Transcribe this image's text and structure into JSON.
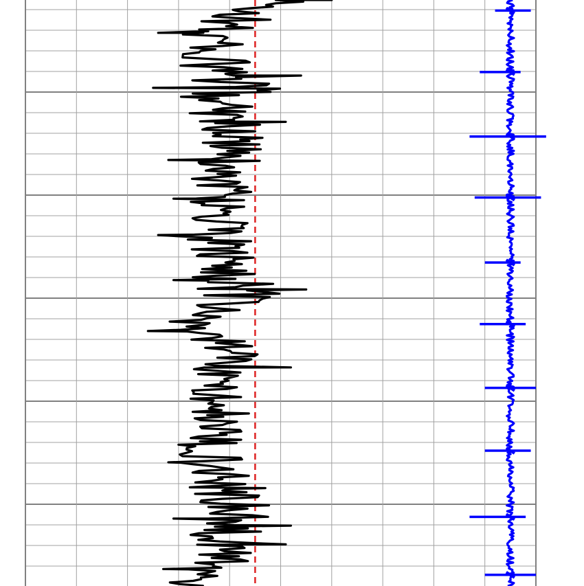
{
  "chart_data": {
    "type": "line",
    "orientation": "vertical-well-log",
    "title": "",
    "grid": true,
    "legend": "none",
    "colors": {
      "background": "#ffffff",
      "grid_minor": "#a0a0a0",
      "grid_major": "#808080",
      "curve_1": "#000000",
      "curve_2": "#0000ff",
      "baseline": "#dd2222"
    },
    "tracks": [
      {
        "name": "",
        "x_range": [
          0,
          10
        ],
        "depth_range": [
          0,
          100
        ],
        "baseline_value": 4.5,
        "series": [
          {
            "name": "",
            "color": "#000000",
            "envelope": [
              {
                "depth": 0,
                "min": 3.7,
                "max": 6.0
              },
              {
                "depth": 5,
                "min": 2.6,
                "max": 4.9
              },
              {
                "depth": 10,
                "min": 2.6,
                "max": 4.6
              },
              {
                "depth": 15,
                "min": 2.5,
                "max": 5.5
              },
              {
                "depth": 20,
                "min": 2.9,
                "max": 5.1
              },
              {
                "depth": 25,
                "min": 3.2,
                "max": 4.9
              },
              {
                "depth": 30,
                "min": 2.9,
                "max": 4.9
              },
              {
                "depth": 35,
                "min": 2.9,
                "max": 4.8
              },
              {
                "depth": 40,
                "min": 2.6,
                "max": 4.7
              },
              {
                "depth": 45,
                "min": 2.9,
                "max": 4.9
              },
              {
                "depth": 50,
                "min": 3.0,
                "max": 5.4
              },
              {
                "depth": 55,
                "min": 2.4,
                "max": 4.0
              },
              {
                "depth": 60,
                "min": 3.0,
                "max": 5.2
              },
              {
                "depth": 65,
                "min": 3.1,
                "max": 4.3
              },
              {
                "depth": 70,
                "min": 2.9,
                "max": 4.7
              },
              {
                "depth": 75,
                "min": 2.7,
                "max": 4.5
              },
              {
                "depth": 80,
                "min": 2.7,
                "max": 4.8
              },
              {
                "depth": 85,
                "min": 3.0,
                "max": 5.1
              },
              {
                "depth": 90,
                "min": 2.8,
                "max": 5.1
              },
              {
                "depth": 95,
                "min": 3.2,
                "max": 4.7
              },
              {
                "depth": 100,
                "min": 2.5,
                "max": 4.0
              }
            ],
            "peaks": [
              {
                "depth": 0.0,
                "value": 6.0
              },
              {
                "depth": 5.6,
                "value": 2.6
              },
              {
                "depth": 12.9,
                "value": 5.4
              },
              {
                "depth": 15.0,
                "value": 2.5
              },
              {
                "depth": 20.8,
                "value": 5.1
              },
              {
                "depth": 27.3,
                "value": 2.8
              },
              {
                "depth": 33.9,
                "value": 2.9
              },
              {
                "depth": 40.1,
                "value": 2.6
              },
              {
                "depth": 47.8,
                "value": 2.9
              },
              {
                "depth": 49.4,
                "value": 5.5
              },
              {
                "depth": 56.5,
                "value": 2.4
              },
              {
                "depth": 62.7,
                "value": 5.2
              },
              {
                "depth": 78.9,
                "value": 2.8
              },
              {
                "depth": 83.3,
                "value": 4.7
              },
              {
                "depth": 88.5,
                "value": 2.9
              },
              {
                "depth": 89.7,
                "value": 5.2
              },
              {
                "depth": 92.9,
                "value": 5.1
              },
              {
                "depth": 97.1,
                "value": 2.7
              }
            ]
          }
        ]
      },
      {
        "name": "",
        "x_range": [
          0,
          10
        ],
        "depth_range": [
          0,
          100
        ],
        "series": [
          {
            "name": "",
            "color": "#0000ff",
            "center": 9.5,
            "noise_half_width": 0.07,
            "spikes": [
              {
                "depth": 1.8,
                "left": 9.2,
                "right": 9.9
              },
              {
                "depth": 12.3,
                "left": 8.9,
                "right": 9.7
              },
              {
                "depth": 23.3,
                "left": 8.7,
                "right": 10.2
              },
              {
                "depth": 33.7,
                "left": 8.8,
                "right": 10.1
              },
              {
                "depth": 44.8,
                "left": 9.0,
                "right": 9.7
              },
              {
                "depth": 55.3,
                "left": 8.9,
                "right": 9.8
              },
              {
                "depth": 66.2,
                "left": 9.0,
                "right": 10.0
              },
              {
                "depth": 76.9,
                "left": 9.0,
                "right": 9.9
              },
              {
                "depth": 88.2,
                "left": 8.7,
                "right": 9.8
              },
              {
                "depth": 98.1,
                "left": 9.0,
                "right": 10.0
              }
            ]
          }
        ]
      }
    ]
  }
}
